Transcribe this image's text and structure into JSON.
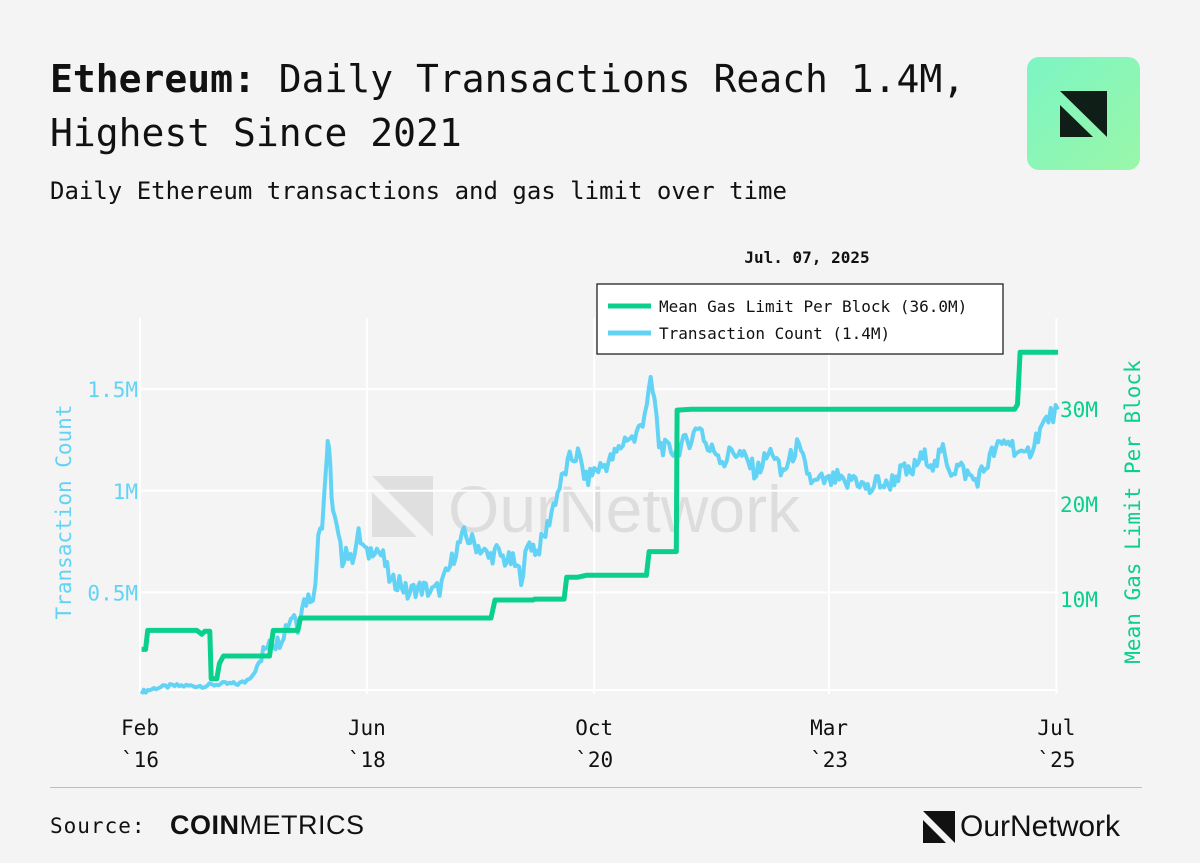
{
  "header": {
    "title_bold": "Ethereum:",
    "title_rest": " Daily Transactions Reach 1.4M, Highest Since 2021",
    "subtitle": "Daily Ethereum transactions and gas limit over time"
  },
  "brand": {
    "logo_icon": "ournetwork-logo-icon",
    "tile_color": "#8ef6b6",
    "watermark": "OurNetwork"
  },
  "footer": {
    "source_label": "Source:",
    "source_brand_bold": "COIN",
    "source_brand_rest": "METRICS",
    "brand_name": "OurNetwork"
  },
  "chart_data": {
    "type": "line",
    "hover_date": "Jul. 07, 2025",
    "colors": {
      "tx": "#63d3f5",
      "gas": "#0bcf8c",
      "grid": "#ffffff"
    },
    "x_ticks": [
      {
        "date": "2016-02-01",
        "month": "Feb",
        "year": "`16"
      },
      {
        "date": "2018-06-01",
        "month": "Jun",
        "year": "`18"
      },
      {
        "date": "2020-10-01",
        "month": "Oct",
        "year": "`20"
      },
      {
        "date": "2023-03-01",
        "month": "Mar",
        "year": "`23"
      },
      {
        "date": "2025-07-01",
        "month": "Jul",
        "year": "`25"
      }
    ],
    "x_range": [
      "2016-02-01",
      "2025-07-07"
    ],
    "y_left": {
      "label": "Transaction Count",
      "range": [
        0,
        1.85
      ],
      "ticks": [
        {
          "v": 0.5,
          "label": "0.5M"
        },
        {
          "v": 1,
          "label": "1M"
        },
        {
          "v": 1.5,
          "label": "1.5M"
        }
      ]
    },
    "y_right": {
      "label": "Mean Gas Limit Per Block",
      "range": [
        0,
        39.6
      ],
      "ticks": [
        {
          "v": 10,
          "label": "10M"
        },
        {
          "v": 20,
          "label": "20M"
        },
        {
          "v": 30,
          "label": "30M"
        }
      ]
    },
    "series": [
      {
        "name": "Mean Gas Limit Per Block (36.0M)",
        "axis": "right",
        "points": [
          [
            "2016-02-07",
            4.7
          ],
          [
            "2016-02-22",
            4.7
          ],
          [
            "2016-03-01",
            6.7
          ],
          [
            "2016-09-01",
            6.7
          ],
          [
            "2016-09-20",
            6.3
          ],
          [
            "2016-10-01",
            6.6
          ],
          [
            "2016-10-20",
            6.6
          ],
          [
            "2016-10-25",
            1.6
          ],
          [
            "2016-11-15",
            1.6
          ],
          [
            "2016-11-25",
            3.2
          ],
          [
            "2016-12-10",
            4.0
          ],
          [
            "2017-06-01",
            4.0
          ],
          [
            "2017-06-15",
            6.7
          ],
          [
            "2017-09-01",
            6.7
          ],
          [
            "2017-09-15",
            6.7
          ],
          [
            "2017-09-25",
            8.0
          ],
          [
            "2017-12-01",
            8.0
          ],
          [
            "2017-12-15",
            8.0
          ],
          [
            "2017-12-20",
            8.0
          ],
          [
            "2018-01-01",
            8.0
          ],
          [
            "2018-01-05",
            8.0
          ],
          [
            "2018-01-15",
            8.0
          ],
          [
            "2018-01-20",
            8.0
          ],
          [
            "2018-02-01",
            8.0
          ],
          [
            "2018-03-01",
            8.0
          ],
          [
            "2018-05-01",
            8.0
          ],
          [
            "2018-07-01",
            8.0
          ],
          [
            "2018-09-01",
            8.0
          ],
          [
            "2018-11-01",
            8.0
          ],
          [
            "2019-01-01",
            8.0
          ],
          [
            "2019-03-01",
            8.0
          ],
          [
            "2019-05-01",
            8.0
          ],
          [
            "2019-07-01",
            8.0
          ],
          [
            "2019-09-01",
            8.0
          ],
          [
            "2019-09-10",
            8.0
          ],
          [
            "2019-09-25",
            9.9
          ],
          [
            "2019-11-01",
            9.9
          ],
          [
            "2019-12-01",
            9.9
          ],
          [
            "2020-01-01",
            9.9
          ],
          [
            "2020-02-01",
            9.9
          ],
          [
            "2020-02-15",
            9.9
          ],
          [
            "2020-02-20",
            10.0
          ],
          [
            "2020-03-01",
            10.0
          ],
          [
            "2020-04-01",
            10.0
          ],
          [
            "2020-05-01",
            10.0
          ],
          [
            "2020-06-01",
            10.0
          ],
          [
            "2020-06-10",
            10.0
          ],
          [
            "2020-06-20",
            12.3
          ],
          [
            "2020-07-01",
            12.3
          ],
          [
            "2020-08-01",
            12.3
          ],
          [
            "2020-09-01",
            12.5
          ],
          [
            "2020-10-01",
            12.5
          ],
          [
            "2020-11-01",
            12.5
          ],
          [
            "2020-12-01",
            12.5
          ],
          [
            "2020-12-05",
            12.5
          ],
          [
            "2020-12-10",
            12.5
          ],
          [
            "2021-01-01",
            12.5
          ],
          [
            "2021-02-01",
            12.5
          ],
          [
            "2021-03-01",
            12.5
          ],
          [
            "2021-04-01",
            12.5
          ],
          [
            "2021-04-15",
            12.5
          ],
          [
            "2021-04-25",
            15.0
          ],
          [
            "2021-05-15",
            15.0
          ],
          [
            "2021-06-01",
            15.0
          ],
          [
            "2021-07-01",
            15.0
          ],
          [
            "2021-07-20",
            15.0
          ],
          [
            "2021-08-05",
            15.0
          ],
          [
            "2021-08-08",
            29.9
          ],
          [
            "2021-10-01",
            30.0
          ],
          [
            "2022-01-01",
            30.0
          ],
          [
            "2022-06-01",
            30.0
          ],
          [
            "2023-01-01",
            30.0
          ],
          [
            "2023-06-01",
            30.0
          ],
          [
            "2024-01-01",
            30.0
          ],
          [
            "2024-06-01",
            30.0
          ],
          [
            "2024-11-15",
            30.0
          ],
          [
            "2025-01-15",
            30.0
          ],
          [
            "2025-01-25",
            30.0
          ],
          [
            "2025-02-05",
            30.5
          ],
          [
            "2025-02-15",
            36.0
          ],
          [
            "2025-04-01",
            36.0
          ],
          [
            "2025-07-07",
            36.0
          ]
        ]
      },
      {
        "name": "Transaction Count (1.4M)",
        "axis": "left",
        "points": [
          [
            "2016-02-07",
            0.01
          ],
          [
            "2016-04-01",
            0.03
          ],
          [
            "2016-06-01",
            0.04
          ],
          [
            "2016-08-01",
            0.04
          ],
          [
            "2016-10-01",
            0.04
          ],
          [
            "2016-12-01",
            0.05
          ],
          [
            "2017-02-01",
            0.05
          ],
          [
            "2017-03-01",
            0.06
          ],
          [
            "2017-04-01",
            0.1
          ],
          [
            "2017-05-01",
            0.17
          ],
          [
            "2017-06-01",
            0.28
          ],
          [
            "2017-07-01",
            0.25
          ],
          [
            "2017-08-01",
            0.33
          ],
          [
            "2017-08-20",
            0.38
          ],
          [
            "2017-09-01",
            0.4
          ],
          [
            "2017-09-15",
            0.33
          ],
          [
            "2017-10-01",
            0.45
          ],
          [
            "2017-11-01",
            0.48
          ],
          [
            "2017-11-20",
            0.52
          ],
          [
            "2017-12-01",
            0.82
          ],
          [
            "2017-12-15",
            0.85
          ],
          [
            "2018-01-01",
            1.15
          ],
          [
            "2018-01-05",
            1.25
          ],
          [
            "2018-01-15",
            1.1
          ],
          [
            "2018-01-25",
            0.9
          ],
          [
            "2018-02-15",
            0.76
          ],
          [
            "2018-03-01",
            0.66
          ],
          [
            "2018-03-15",
            0.72
          ],
          [
            "2018-04-01",
            0.65
          ],
          [
            "2018-05-01",
            0.78
          ],
          [
            "2018-06-01",
            0.68
          ],
          [
            "2018-07-01",
            0.73
          ],
          [
            "2018-08-01",
            0.67
          ],
          [
            "2018-09-01",
            0.54
          ],
          [
            "2018-10-01",
            0.56
          ],
          [
            "2018-11-01",
            0.49
          ],
          [
            "2018-12-01",
            0.52
          ],
          [
            "2019-01-01",
            0.52
          ],
          [
            "2019-02-01",
            0.5
          ],
          [
            "2019-03-01",
            0.52
          ],
          [
            "2019-04-01",
            0.6
          ],
          [
            "2019-05-01",
            0.71
          ],
          [
            "2019-06-01",
            0.78
          ],
          [
            "2019-07-01",
            0.75
          ],
          [
            "2019-08-01",
            0.72
          ],
          [
            "2019-09-01",
            0.67
          ],
          [
            "2019-10-01",
            0.7
          ],
          [
            "2019-11-01",
            0.66
          ],
          [
            "2019-12-01",
            0.65
          ],
          [
            "2020-01-01",
            0.58
          ],
          [
            "2020-02-01",
            0.75
          ],
          [
            "2020-03-01",
            0.7
          ],
          [
            "2020-04-01",
            0.79
          ],
          [
            "2020-05-01",
            0.93
          ],
          [
            "2020-06-01",
            1.05
          ],
          [
            "2020-07-01",
            1.15
          ],
          [
            "2020-08-01",
            1.18
          ],
          [
            "2020-09-01",
            1.05
          ],
          [
            "2020-10-01",
            1.1
          ],
          [
            "2020-11-01",
            1.12
          ],
          [
            "2020-12-01",
            1.15
          ],
          [
            "2021-01-01",
            1.2
          ],
          [
            "2021-02-01",
            1.27
          ],
          [
            "2021-03-01",
            1.25
          ],
          [
            "2021-04-01",
            1.35
          ],
          [
            "2021-05-01",
            1.52
          ],
          [
            "2021-05-15",
            1.45
          ],
          [
            "2021-06-01",
            1.23
          ],
          [
            "2021-07-01",
            1.2
          ],
          [
            "2021-08-01",
            1.2
          ],
          [
            "2021-09-01",
            1.23
          ],
          [
            "2021-10-01",
            1.26
          ],
          [
            "2021-11-01",
            1.33
          ],
          [
            "2021-12-01",
            1.2
          ],
          [
            "2022-01-01",
            1.2
          ],
          [
            "2022-02-01",
            1.14
          ],
          [
            "2022-03-01",
            1.2
          ],
          [
            "2022-04-01",
            1.18
          ],
          [
            "2022-05-01",
            1.14
          ],
          [
            "2022-06-01",
            1.09
          ],
          [
            "2022-07-01",
            1.15
          ],
          [
            "2022-08-01",
            1.2
          ],
          [
            "2022-09-01",
            1.08
          ],
          [
            "2022-10-01",
            1.14
          ],
          [
            "2022-11-01",
            1.22
          ],
          [
            "2022-12-01",
            1.12
          ],
          [
            "2023-01-01",
            1.03
          ],
          [
            "2023-02-01",
            1.05
          ],
          [
            "2023-03-01",
            1.04
          ],
          [
            "2023-04-01",
            1.06
          ],
          [
            "2023-05-01",
            1.02
          ],
          [
            "2023-06-01",
            1.07
          ],
          [
            "2023-07-01",
            1.03
          ],
          [
            "2023-08-01",
            1.0
          ],
          [
            "2023-09-01",
            1.05
          ],
          [
            "2023-10-01",
            1.02
          ],
          [
            "2023-11-01",
            1.06
          ],
          [
            "2023-12-01",
            1.1
          ],
          [
            "2024-01-01",
            1.08
          ],
          [
            "2024-02-01",
            1.15
          ],
          [
            "2024-03-01",
            1.17
          ],
          [
            "2024-04-01",
            1.12
          ],
          [
            "2024-05-01",
            1.2
          ],
          [
            "2024-06-01",
            1.1
          ],
          [
            "2024-07-01",
            1.12
          ],
          [
            "2024-08-01",
            1.08
          ],
          [
            "2024-09-01",
            1.05
          ],
          [
            "2024-10-01",
            1.1
          ],
          [
            "2024-11-01",
            1.18
          ],
          [
            "2024-12-01",
            1.22
          ],
          [
            "2025-01-01",
            1.25
          ],
          [
            "2025-02-01",
            1.2
          ],
          [
            "2025-03-01",
            1.15
          ],
          [
            "2025-04-01",
            1.22
          ],
          [
            "2025-05-01",
            1.3
          ],
          [
            "2025-06-01",
            1.36
          ],
          [
            "2025-07-07",
            1.4
          ]
        ]
      }
    ]
  }
}
